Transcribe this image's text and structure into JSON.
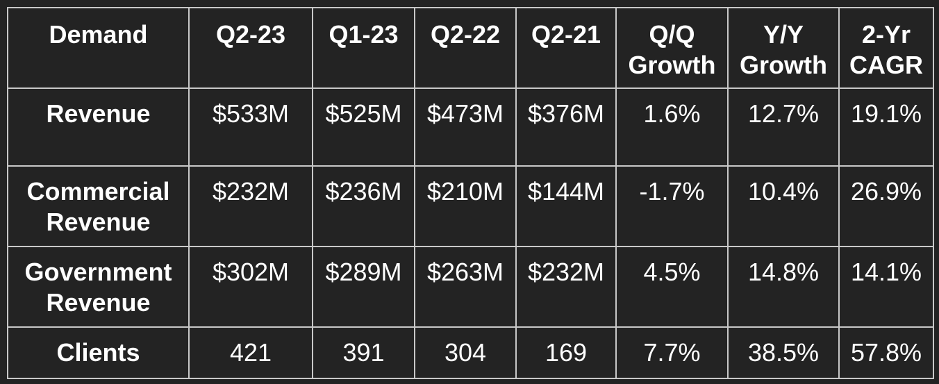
{
  "chart_data": {
    "type": "table",
    "columns": [
      "Demand",
      "Q2-23",
      "Q1-23",
      "Q2-22",
      "Q2-21",
      "Q/Q Growth",
      "Y/Y Growth",
      "2-Yr CAGR"
    ],
    "rows": [
      {
        "label": "Revenue",
        "values": [
          "$533M",
          "$525M",
          "$473M",
          "$376M",
          "1.6%",
          "12.7%",
          "19.1%"
        ]
      },
      {
        "label": "Commercial Revenue",
        "values": [
          "$232M",
          "$236M",
          "$210M",
          "$144M",
          "-1.7%",
          "10.4%",
          "26.9%"
        ]
      },
      {
        "label": "Government Revenue",
        "values": [
          "$302M",
          "$289M",
          "$263M",
          "$232M",
          "4.5%",
          "14.8%",
          "14.1%"
        ]
      },
      {
        "label": "Clients",
        "values": [
          "421",
          "391",
          "304",
          "169",
          "7.7%",
          "38.5%",
          "57.8%"
        ]
      }
    ]
  },
  "header": {
    "demand": "Demand",
    "q2_23": "Q2-23",
    "q1_23": "Q1-23",
    "q2_22": "Q2-22",
    "q2_21": "Q2-21",
    "qq_1": "Q/Q",
    "qq_2": "Growth",
    "yy_1": "Y/Y",
    "yy_2": "Growth",
    "cagr_1": "2-Yr",
    "cagr_2": "CAGR"
  },
  "rows": {
    "revenue": {
      "label_1": "Revenue",
      "label_2": ""
    },
    "commercial": {
      "label_1": "Commercial",
      "label_2": "Revenue"
    },
    "government": {
      "label_1": "Government",
      "label_2": "Revenue"
    },
    "clients": {
      "label_1": "Clients",
      "label_2": ""
    }
  },
  "colors": {
    "background": "#232323",
    "text": "#ffffff",
    "grid": "#c8c8c8"
  }
}
